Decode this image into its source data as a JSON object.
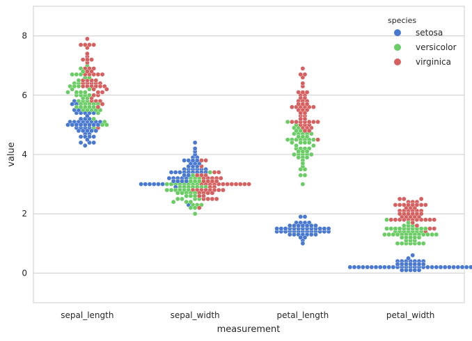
{
  "chart_data": {
    "type": "scatter",
    "subtype": "swarm",
    "title": "",
    "xlabel": "measurement",
    "ylabel": "value",
    "categories": [
      "sepal_length",
      "sepal_width",
      "petal_length",
      "petal_width"
    ],
    "ylim": [
      -1,
      9
    ],
    "yticks": [
      0,
      2,
      4,
      6,
      8
    ],
    "grid": "horizontal",
    "legend": {
      "title": "species",
      "position": "top-right"
    },
    "series": [
      {
        "name": "setosa",
        "color": "#4878d0",
        "values": {
          "sepal_length": [
            5.1,
            4.9,
            4.7,
            4.6,
            5.0,
            5.4,
            4.6,
            5.0,
            4.4,
            4.9,
            5.4,
            4.8,
            4.8,
            4.3,
            5.8,
            5.7,
            5.4,
            5.1,
            5.7,
            5.1,
            5.4,
            5.1,
            4.6,
            5.1,
            4.8,
            5.0,
            5.0,
            5.2,
            5.2,
            4.7,
            4.8,
            5.4,
            5.2,
            5.5,
            4.9,
            5.0,
            5.5,
            4.9,
            4.4,
            5.1,
            5.0,
            4.5,
            4.4,
            5.0,
            5.1,
            4.8,
            5.1,
            4.6,
            5.3,
            5.0
          ],
          "sepal_width": [
            3.5,
            3.0,
            3.2,
            3.1,
            3.6,
            3.9,
            3.4,
            3.4,
            2.9,
            3.1,
            3.7,
            3.4,
            3.0,
            3.0,
            4.0,
            4.4,
            3.9,
            3.5,
            3.8,
            3.8,
            3.4,
            3.7,
            3.6,
            3.3,
            3.4,
            3.0,
            3.4,
            3.5,
            3.4,
            3.2,
            3.1,
            3.4,
            4.1,
            4.2,
            3.1,
            3.2,
            3.5,
            3.6,
            3.0,
            3.4,
            3.5,
            2.3,
            3.2,
            3.5,
            3.8,
            3.0,
            3.8,
            3.2,
            3.7,
            3.3
          ],
          "petal_length": [
            1.4,
            1.4,
            1.3,
            1.5,
            1.4,
            1.7,
            1.4,
            1.5,
            1.4,
            1.5,
            1.5,
            1.6,
            1.4,
            1.1,
            1.2,
            1.5,
            1.3,
            1.4,
            1.7,
            1.5,
            1.7,
            1.5,
            1.0,
            1.7,
            1.9,
            1.6,
            1.6,
            1.5,
            1.4,
            1.6,
            1.6,
            1.5,
            1.5,
            1.4,
            1.5,
            1.2,
            1.3,
            1.4,
            1.3,
            1.5,
            1.3,
            1.3,
            1.3,
            1.6,
            1.9,
            1.4,
            1.6,
            1.4,
            1.5,
            1.4
          ],
          "petal_width": [
            0.2,
            0.2,
            0.2,
            0.2,
            0.2,
            0.4,
            0.3,
            0.2,
            0.2,
            0.1,
            0.2,
            0.2,
            0.1,
            0.1,
            0.2,
            0.4,
            0.4,
            0.3,
            0.3,
            0.3,
            0.2,
            0.4,
            0.2,
            0.5,
            0.2,
            0.2,
            0.4,
            0.2,
            0.2,
            0.2,
            0.2,
            0.4,
            0.1,
            0.2,
            0.2,
            0.2,
            0.2,
            0.1,
            0.2,
            0.2,
            0.3,
            0.3,
            0.2,
            0.6,
            0.4,
            0.3,
            0.2,
            0.2,
            0.2,
            0.2
          ]
        }
      },
      {
        "name": "versicolor",
        "color": "#6acc64",
        "values": {
          "sepal_length": [
            7.0,
            6.4,
            6.9,
            5.5,
            6.5,
            5.7,
            6.3,
            4.9,
            6.6,
            5.2,
            5.0,
            5.9,
            6.0,
            6.1,
            5.6,
            6.7,
            5.6,
            5.8,
            6.2,
            5.6,
            5.9,
            6.1,
            6.3,
            6.1,
            6.4,
            6.6,
            6.8,
            6.7,
            6.0,
            5.7,
            5.5,
            5.5,
            5.8,
            6.0,
            5.4,
            6.0,
            6.7,
            6.3,
            5.6,
            5.5,
            5.5,
            6.1,
            5.8,
            5.0,
            5.6,
            5.7,
            5.7,
            6.2,
            5.1,
            5.7
          ],
          "sepal_width": [
            3.2,
            3.2,
            3.1,
            2.3,
            2.8,
            2.8,
            3.3,
            2.4,
            2.9,
            2.7,
            2.0,
            3.0,
            2.2,
            2.9,
            2.9,
            3.1,
            3.0,
            2.7,
            2.2,
            2.5,
            3.2,
            2.8,
            2.5,
            2.8,
            2.9,
            3.0,
            2.8,
            3.0,
            2.9,
            2.6,
            2.4,
            2.4,
            2.7,
            2.7,
            3.0,
            3.4,
            3.1,
            2.3,
            3.0,
            2.5,
            2.6,
            3.0,
            2.6,
            2.3,
            2.7,
            3.0,
            2.9,
            2.9,
            2.5,
            2.8
          ],
          "petal_length": [
            4.7,
            4.5,
            4.9,
            4.0,
            4.6,
            4.5,
            4.7,
            3.3,
            4.6,
            3.9,
            3.5,
            4.2,
            4.0,
            4.7,
            3.6,
            4.4,
            4.5,
            4.1,
            4.5,
            3.9,
            4.8,
            4.0,
            4.9,
            4.7,
            4.3,
            4.4,
            4.8,
            5.0,
            4.5,
            3.5,
            3.8,
            3.7,
            3.9,
            5.1,
            4.5,
            4.5,
            4.7,
            4.4,
            4.1,
            4.0,
            4.4,
            4.6,
            4.0,
            3.3,
            4.2,
            4.2,
            4.2,
            4.3,
            3.0,
            4.1
          ],
          "petal_width": [
            1.4,
            1.5,
            1.5,
            1.3,
            1.5,
            1.3,
            1.6,
            1.0,
            1.3,
            1.4,
            1.0,
            1.5,
            1.0,
            1.4,
            1.3,
            1.4,
            1.5,
            1.0,
            1.5,
            1.1,
            1.8,
            1.3,
            1.5,
            1.2,
            1.3,
            1.4,
            1.4,
            1.7,
            1.5,
            1.0,
            1.1,
            1.0,
            1.2,
            1.6,
            1.5,
            1.6,
            1.5,
            1.3,
            1.3,
            1.3,
            1.2,
            1.4,
            1.2,
            1.0,
            1.3,
            1.2,
            1.3,
            1.3,
            1.1,
            1.3
          ]
        }
      },
      {
        "name": "virginica",
        "color": "#d65f5f",
        "values": {
          "sepal_length": [
            6.3,
            5.8,
            7.1,
            6.3,
            6.5,
            7.6,
            4.9,
            7.3,
            6.7,
            7.2,
            6.5,
            6.4,
            6.8,
            5.7,
            5.8,
            6.4,
            6.5,
            7.7,
            7.7,
            6.0,
            6.9,
            5.6,
            7.7,
            6.3,
            6.7,
            7.2,
            6.2,
            6.1,
            6.4,
            7.2,
            7.4,
            7.9,
            6.4,
            6.3,
            6.1,
            7.7,
            6.3,
            6.4,
            6.0,
            6.9,
            6.7,
            6.9,
            5.8,
            6.8,
            6.7,
            6.7,
            6.3,
            6.5,
            6.2,
            5.9
          ],
          "sepal_width": [
            3.3,
            2.7,
            3.0,
            2.9,
            3.0,
            3.0,
            2.5,
            2.9,
            2.5,
            3.6,
            3.2,
            2.7,
            3.0,
            2.5,
            2.8,
            3.2,
            3.0,
            3.8,
            2.6,
            2.2,
            3.2,
            2.8,
            2.8,
            2.7,
            3.3,
            3.2,
            2.8,
            3.0,
            2.8,
            3.0,
            2.8,
            3.8,
            2.8,
            2.8,
            2.6,
            3.0,
            3.4,
            3.1,
            3.0,
            3.1,
            3.1,
            3.1,
            2.7,
            3.2,
            3.3,
            3.0,
            2.5,
            3.0,
            3.4,
            3.0
          ],
          "petal_length": [
            6.0,
            5.1,
            5.9,
            5.6,
            5.8,
            6.6,
            4.5,
            6.3,
            5.8,
            6.1,
            5.1,
            5.3,
            5.5,
            5.0,
            5.1,
            5.3,
            5.5,
            6.7,
            6.9,
            5.0,
            5.7,
            4.9,
            6.7,
            4.9,
            5.7,
            6.0,
            4.8,
            4.9,
            5.6,
            5.8,
            6.1,
            6.4,
            5.6,
            5.1,
            5.6,
            6.1,
            5.6,
            5.5,
            4.8,
            5.4,
            5.6,
            5.1,
            5.1,
            5.9,
            5.7,
            5.2,
            5.0,
            5.2,
            5.4,
            5.1
          ],
          "petal_width": [
            2.5,
            1.9,
            2.1,
            1.8,
            2.2,
            2.1,
            1.7,
            1.8,
            1.8,
            2.5,
            2.0,
            1.9,
            2.1,
            2.0,
            2.4,
            2.3,
            1.8,
            2.2,
            2.3,
            1.5,
            2.3,
            2.0,
            2.0,
            1.8,
            2.1,
            1.8,
            1.8,
            1.8,
            2.1,
            1.6,
            1.9,
            2.0,
            2.2,
            1.5,
            1.4,
            2.3,
            2.4,
            1.8,
            1.8,
            2.1,
            2.4,
            2.3,
            1.9,
            2.3,
            2.5,
            2.3,
            1.9,
            2.0,
            2.3,
            1.8
          ]
        }
      }
    ]
  }
}
